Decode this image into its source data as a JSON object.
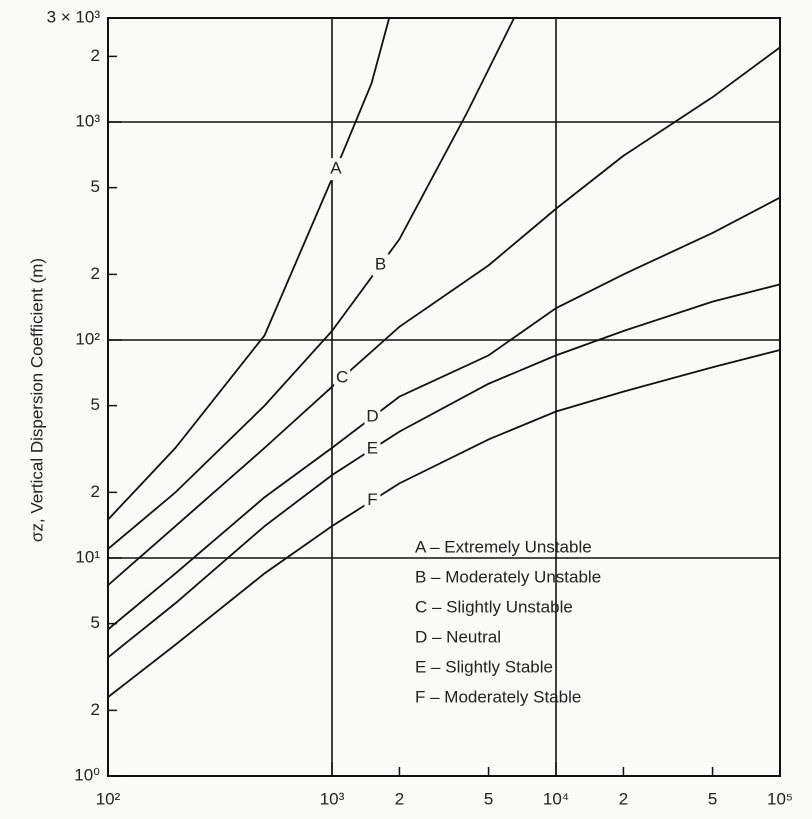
{
  "chart_data": {
    "type": "line",
    "ylabel": "σz, Vertical Dispersion Coefficient (m)",
    "xscale": "log",
    "yscale": "log",
    "xlim": [
      100,
      100000
    ],
    "ylim": [
      1,
      3000
    ],
    "xticks": [
      {
        "value": 100,
        "label": "10²"
      },
      2,
      5,
      {
        "value": 1000,
        "label": "10³"
      },
      {
        "value": 2000,
        "label": "2"
      },
      {
        "value": 5000,
        "label": "5"
      },
      {
        "value": 10000,
        "label": "10⁴"
      },
      {
        "value": 20000,
        "label": "2"
      },
      {
        "value": 50000,
        "label": "5"
      },
      {
        "value": 100000,
        "label": "10⁵"
      }
    ],
    "yticks": [
      {
        "value": 1,
        "label": "10⁰"
      },
      2,
      5,
      {
        "value": 10,
        "label": "10¹"
      },
      {
        "value": 20,
        "label": "2"
      },
      {
        "value": 50,
        "label": "5"
      },
      {
        "value": 100,
        "label": "10²"
      },
      {
        "value": 200,
        "label": "2"
      },
      {
        "value": 500,
        "label": "5"
      },
      {
        "value": 1000,
        "label": "10³"
      },
      {
        "value": 2000,
        "label": "2"
      },
      {
        "value": 3000,
        "label": "3 × 10³"
      }
    ],
    "grid": "major",
    "legend": "lower right",
    "series": [
      {
        "label": "A",
        "name": "A – Extremely Unstable",
        "color": "#111111",
        "x": [
          100,
          200,
          500,
          1000,
          1500,
          1800
        ],
        "values": [
          15,
          32,
          105,
          550,
          1500,
          3000
        ]
      },
      {
        "label": "B",
        "name": "B – Moderately Unstable",
        "color": "#111111",
        "x": [
          100,
          200,
          500,
          1000,
          2000,
          4000,
          6500
        ],
        "values": [
          11,
          20,
          50,
          110,
          290,
          1100,
          3000
        ]
      },
      {
        "label": "C",
        "name": "C – Slightly Unstable",
        "color": "#111111",
        "x": [
          100,
          200,
          500,
          1000,
          2000,
          5000,
          10000,
          20000,
          50000,
          100000
        ],
        "values": [
          7.5,
          14,
          32,
          61,
          115,
          220,
          400,
          700,
          1300,
          2200
        ]
      },
      {
        "label": "D",
        "name": "D – Neutral",
        "color": "#111111",
        "x": [
          100,
          200,
          500,
          1000,
          2000,
          5000,
          10000,
          20000,
          50000,
          100000
        ],
        "values": [
          4.7,
          8.5,
          19,
          32,
          55,
          85,
          140,
          200,
          310,
          450
        ]
      },
      {
        "label": "E",
        "name": "E – Slightly Stable",
        "color": "#111111",
        "x": [
          100,
          200,
          500,
          1000,
          2000,
          5000,
          10000,
          20000,
          50000,
          100000
        ],
        "values": [
          3.5,
          6.2,
          14,
          24,
          38,
          63,
          85,
          110,
          150,
          180
        ]
      },
      {
        "label": "F",
        "name": "F – Moderately Stable",
        "color": "#111111",
        "x": [
          100,
          200,
          500,
          1000,
          2000,
          5000,
          10000,
          20000,
          50000,
          100000
        ],
        "values": [
          2.3,
          4,
          8.5,
          14,
          22,
          35,
          47,
          58,
          75,
          90
        ]
      }
    ]
  }
}
